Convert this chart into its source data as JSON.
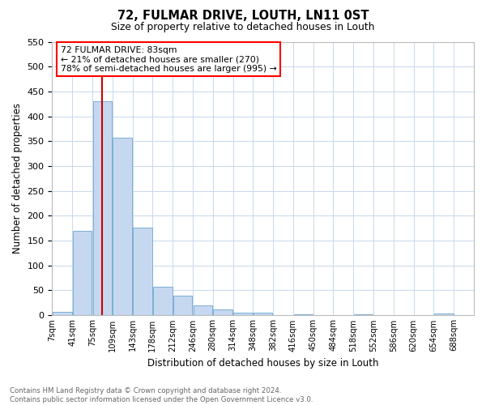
{
  "title1": "72, FULMAR DRIVE, LOUTH, LN11 0ST",
  "title2": "Size of property relative to detached houses in Louth",
  "xlabel": "Distribution of detached houses by size in Louth",
  "ylabel": "Number of detached properties",
  "footer": "Contains HM Land Registry data © Crown copyright and database right 2024.\nContains public sector information licensed under the Open Government Licence v3.0.",
  "annotation_line1": "72 FULMAR DRIVE: 83sqm",
  "annotation_line2": "← 21% of detached houses are smaller (270)",
  "annotation_line3": "78% of semi-detached houses are larger (995) →",
  "bar_color": "#c5d8f0",
  "bar_edge_color": "#7bafd4",
  "red_line_color": "#cc0000",
  "background_color": "#ffffff",
  "grid_color": "#c8d8ec",
  "categories": [
    "7sqm",
    "41sqm",
    "75sqm",
    "109sqm",
    "143sqm",
    "178sqm",
    "212sqm",
    "246sqm",
    "280sqm",
    "314sqm",
    "348sqm",
    "382sqm",
    "416sqm",
    "450sqm",
    "484sqm",
    "518sqm",
    "552sqm",
    "586sqm",
    "620sqm",
    "654sqm",
    "688sqm"
  ],
  "bin_edges": [
    0,
    1,
    2,
    3,
    4,
    5,
    6,
    7,
    8,
    9,
    10,
    11,
    12,
    13,
    14,
    15,
    16,
    17,
    18,
    19,
    20,
    21
  ],
  "values": [
    7,
    170,
    430,
    357,
    176,
    57,
    40,
    20,
    11,
    5,
    5,
    0,
    2,
    0,
    0,
    2,
    0,
    0,
    0,
    4,
    0
  ],
  "red_line_bin": 2.47,
  "ylim": [
    0,
    550
  ],
  "yticks": [
    0,
    50,
    100,
    150,
    200,
    250,
    300,
    350,
    400,
    450,
    500,
    550
  ]
}
